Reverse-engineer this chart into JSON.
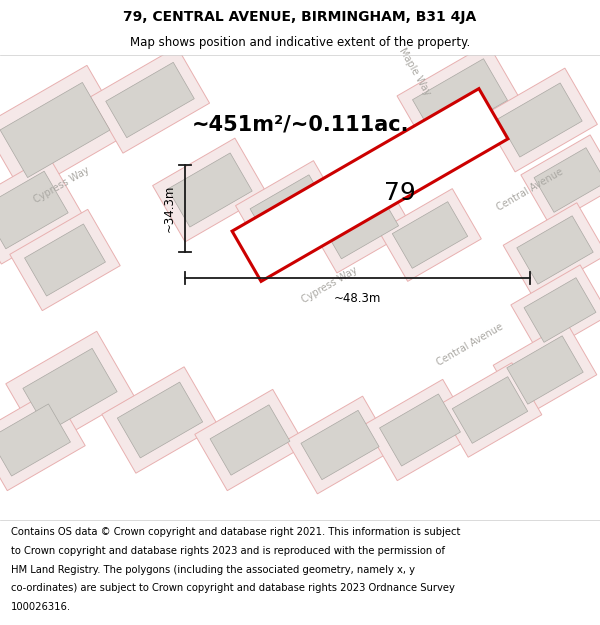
{
  "title": "79, CENTRAL AVENUE, BIRMINGHAM, B31 4JA",
  "subtitle": "Map shows position and indicative extent of the property.",
  "area_text": "~451m²/~0.111ac.",
  "label_79": "79",
  "dim_width": "~48.3m",
  "dim_height": "~34.3m",
  "footer_lines": [
    "Contains OS data © Crown copyright and database right 2021. This information is subject",
    "to Crown copyright and database rights 2023 and is reproduced with the permission of",
    "HM Land Registry. The polygons (including the associated geometry, namely x, y",
    "co-ordinates) are subject to Crown copyright and database rights 2023 Ordnance Survey",
    "100026316."
  ],
  "map_bg": "#f2f0ed",
  "building_fill": "#d6d3ce",
  "building_edge": "#aaa8a3",
  "plot_fill": "#f5e8e8",
  "plot_edge": "#e8b0b0",
  "highlight_color": "#cc0000",
  "street_label_color": "#aaa8a3",
  "dim_line_color": "#1a1a1a",
  "road_fill": "#ffffff",
  "title_fontsize": 10,
  "subtitle_fontsize": 8.5,
  "area_fontsize": 15,
  "label_fontsize": 18,
  "footer_fontsize": 7.2
}
